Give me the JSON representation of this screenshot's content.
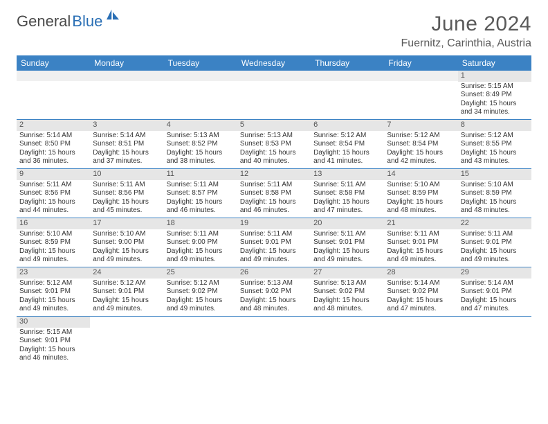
{
  "brand": {
    "part1": "General",
    "part2": "Blue"
  },
  "title": "June 2024",
  "location": "Fuernitz, Carinthia, Austria",
  "colors": {
    "header_bg": "#3b82c4",
    "header_text": "#ffffff",
    "daynum_bg": "#e6e6e6",
    "border": "#3b82c4",
    "logo_blue": "#2a6fb5",
    "text": "#333333"
  },
  "weekdays": [
    "Sunday",
    "Monday",
    "Tuesday",
    "Wednesday",
    "Thursday",
    "Friday",
    "Saturday"
  ],
  "weeks": [
    [
      null,
      null,
      null,
      null,
      null,
      null,
      {
        "n": "1",
        "sr": "Sunrise: 5:15 AM",
        "ss": "Sunset: 8:49 PM",
        "dl1": "Daylight: 15 hours",
        "dl2": "and 34 minutes."
      }
    ],
    [
      {
        "n": "2",
        "sr": "Sunrise: 5:14 AM",
        "ss": "Sunset: 8:50 PM",
        "dl1": "Daylight: 15 hours",
        "dl2": "and 36 minutes."
      },
      {
        "n": "3",
        "sr": "Sunrise: 5:14 AM",
        "ss": "Sunset: 8:51 PM",
        "dl1": "Daylight: 15 hours",
        "dl2": "and 37 minutes."
      },
      {
        "n": "4",
        "sr": "Sunrise: 5:13 AM",
        "ss": "Sunset: 8:52 PM",
        "dl1": "Daylight: 15 hours",
        "dl2": "and 38 minutes."
      },
      {
        "n": "5",
        "sr": "Sunrise: 5:13 AM",
        "ss": "Sunset: 8:53 PM",
        "dl1": "Daylight: 15 hours",
        "dl2": "and 40 minutes."
      },
      {
        "n": "6",
        "sr": "Sunrise: 5:12 AM",
        "ss": "Sunset: 8:54 PM",
        "dl1": "Daylight: 15 hours",
        "dl2": "and 41 minutes."
      },
      {
        "n": "7",
        "sr": "Sunrise: 5:12 AM",
        "ss": "Sunset: 8:54 PM",
        "dl1": "Daylight: 15 hours",
        "dl2": "and 42 minutes."
      },
      {
        "n": "8",
        "sr": "Sunrise: 5:12 AM",
        "ss": "Sunset: 8:55 PM",
        "dl1": "Daylight: 15 hours",
        "dl2": "and 43 minutes."
      }
    ],
    [
      {
        "n": "9",
        "sr": "Sunrise: 5:11 AM",
        "ss": "Sunset: 8:56 PM",
        "dl1": "Daylight: 15 hours",
        "dl2": "and 44 minutes."
      },
      {
        "n": "10",
        "sr": "Sunrise: 5:11 AM",
        "ss": "Sunset: 8:56 PM",
        "dl1": "Daylight: 15 hours",
        "dl2": "and 45 minutes."
      },
      {
        "n": "11",
        "sr": "Sunrise: 5:11 AM",
        "ss": "Sunset: 8:57 PM",
        "dl1": "Daylight: 15 hours",
        "dl2": "and 46 minutes."
      },
      {
        "n": "12",
        "sr": "Sunrise: 5:11 AM",
        "ss": "Sunset: 8:58 PM",
        "dl1": "Daylight: 15 hours",
        "dl2": "and 46 minutes."
      },
      {
        "n": "13",
        "sr": "Sunrise: 5:11 AM",
        "ss": "Sunset: 8:58 PM",
        "dl1": "Daylight: 15 hours",
        "dl2": "and 47 minutes."
      },
      {
        "n": "14",
        "sr": "Sunrise: 5:10 AM",
        "ss": "Sunset: 8:59 PM",
        "dl1": "Daylight: 15 hours",
        "dl2": "and 48 minutes."
      },
      {
        "n": "15",
        "sr": "Sunrise: 5:10 AM",
        "ss": "Sunset: 8:59 PM",
        "dl1": "Daylight: 15 hours",
        "dl2": "and 48 minutes."
      }
    ],
    [
      {
        "n": "16",
        "sr": "Sunrise: 5:10 AM",
        "ss": "Sunset: 8:59 PM",
        "dl1": "Daylight: 15 hours",
        "dl2": "and 49 minutes."
      },
      {
        "n": "17",
        "sr": "Sunrise: 5:10 AM",
        "ss": "Sunset: 9:00 PM",
        "dl1": "Daylight: 15 hours",
        "dl2": "and 49 minutes."
      },
      {
        "n": "18",
        "sr": "Sunrise: 5:11 AM",
        "ss": "Sunset: 9:00 PM",
        "dl1": "Daylight: 15 hours",
        "dl2": "and 49 minutes."
      },
      {
        "n": "19",
        "sr": "Sunrise: 5:11 AM",
        "ss": "Sunset: 9:01 PM",
        "dl1": "Daylight: 15 hours",
        "dl2": "and 49 minutes."
      },
      {
        "n": "20",
        "sr": "Sunrise: 5:11 AM",
        "ss": "Sunset: 9:01 PM",
        "dl1": "Daylight: 15 hours",
        "dl2": "and 49 minutes."
      },
      {
        "n": "21",
        "sr": "Sunrise: 5:11 AM",
        "ss": "Sunset: 9:01 PM",
        "dl1": "Daylight: 15 hours",
        "dl2": "and 49 minutes."
      },
      {
        "n": "22",
        "sr": "Sunrise: 5:11 AM",
        "ss": "Sunset: 9:01 PM",
        "dl1": "Daylight: 15 hours",
        "dl2": "and 49 minutes."
      }
    ],
    [
      {
        "n": "23",
        "sr": "Sunrise: 5:12 AM",
        "ss": "Sunset: 9:01 PM",
        "dl1": "Daylight: 15 hours",
        "dl2": "and 49 minutes."
      },
      {
        "n": "24",
        "sr": "Sunrise: 5:12 AM",
        "ss": "Sunset: 9:01 PM",
        "dl1": "Daylight: 15 hours",
        "dl2": "and 49 minutes."
      },
      {
        "n": "25",
        "sr": "Sunrise: 5:12 AM",
        "ss": "Sunset: 9:02 PM",
        "dl1": "Daylight: 15 hours",
        "dl2": "and 49 minutes."
      },
      {
        "n": "26",
        "sr": "Sunrise: 5:13 AM",
        "ss": "Sunset: 9:02 PM",
        "dl1": "Daylight: 15 hours",
        "dl2": "and 48 minutes."
      },
      {
        "n": "27",
        "sr": "Sunrise: 5:13 AM",
        "ss": "Sunset: 9:02 PM",
        "dl1": "Daylight: 15 hours",
        "dl2": "and 48 minutes."
      },
      {
        "n": "28",
        "sr": "Sunrise: 5:14 AM",
        "ss": "Sunset: 9:02 PM",
        "dl1": "Daylight: 15 hours",
        "dl2": "and 47 minutes."
      },
      {
        "n": "29",
        "sr": "Sunrise: 5:14 AM",
        "ss": "Sunset: 9:01 PM",
        "dl1": "Daylight: 15 hours",
        "dl2": "and 47 minutes."
      }
    ],
    [
      {
        "n": "30",
        "sr": "Sunrise: 5:15 AM",
        "ss": "Sunset: 9:01 PM",
        "dl1": "Daylight: 15 hours",
        "dl2": "and 46 minutes."
      },
      null,
      null,
      null,
      null,
      null,
      null
    ]
  ]
}
